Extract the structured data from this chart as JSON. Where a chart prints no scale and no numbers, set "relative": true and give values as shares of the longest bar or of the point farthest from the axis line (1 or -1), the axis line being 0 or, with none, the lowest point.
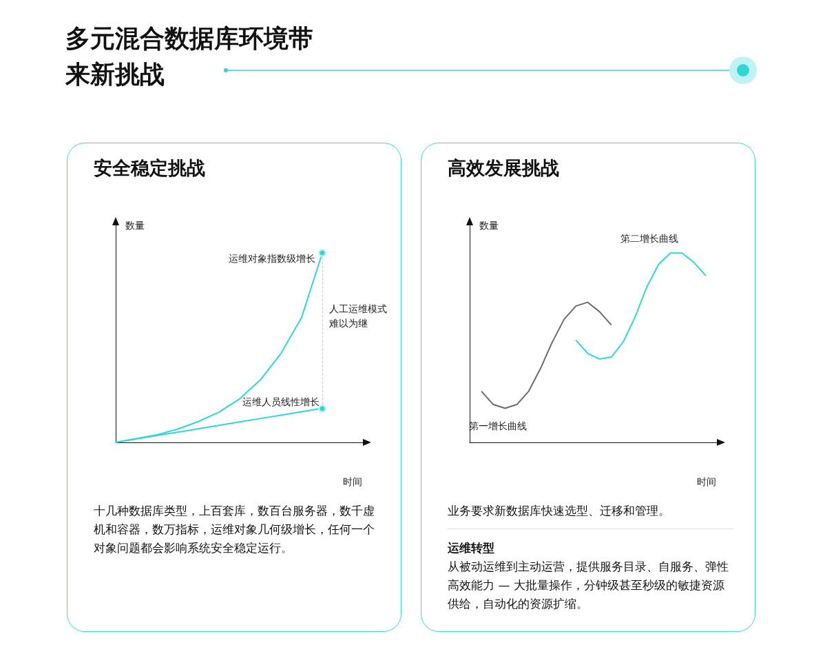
{
  "chart_data": [
    {
      "type": "other",
      "title": "多元混合数据库环境带来新挑战"
    },
    {
      "type": "line",
      "title": "安全稳定挑战",
      "xlabel": "时间",
      "ylabel": "数量",
      "relative": true,
      "grid": false,
      "categories": [
        null,
        null,
        null,
        null,
        null,
        null,
        null,
        null,
        null,
        null,
        null,
        null,
        null
      ],
      "series": [
        {
          "name": "运维对象指数级增长",
          "color": "#2ed6d6",
          "values": [
            0,
            0.02,
            0.04,
            0.07,
            0.11,
            0.16,
            0.23,
            0.33,
            0.47,
            0.66,
            1.0,
            null,
            null
          ]
        },
        {
          "name": "运维人员线性增长",
          "color": "#2ed6d6",
          "values": [
            0,
            0.018,
            0.036,
            0.054,
            0.072,
            0.09,
            0.108,
            0.126,
            0.144,
            0.162,
            0.18,
            null,
            null
          ]
        }
      ],
      "annotations": [
        "人工运维模式难以为继",
        "十几种数据库类型，上百套库，数百台服务器，数千虚机和容器，数万指标，运维对象几何级增长，任何一个对象问题都会影响系统安全稳定运行。"
      ]
    },
    {
      "type": "line",
      "title": "高效发展挑战",
      "xlabel": "时间",
      "ylabel": "数量",
      "relative": true,
      "grid": false,
      "categories": [
        null,
        null,
        null,
        null,
        null,
        null,
        null,
        null,
        null,
        null,
        null,
        null,
        null,
        null,
        null,
        null,
        null,
        null,
        null,
        null,
        null,
        null
      ],
      "series": [
        {
          "name": "第一增长曲线",
          "color": "#6b6b6b",
          "values": [
            null,
            0.27,
            0.2,
            0.18,
            0.2,
            0.27,
            0.39,
            0.53,
            0.65,
            0.72,
            0.74,
            0.69,
            0.62,
            null,
            null,
            null,
            null,
            null,
            null,
            null,
            null,
            null
          ]
        },
        {
          "name": "第二增长曲线",
          "color": "#2ed6d6",
          "values": [
            null,
            null,
            null,
            null,
            null,
            null,
            null,
            null,
            null,
            0.54,
            0.47,
            0.44,
            0.45,
            0.53,
            0.66,
            0.82,
            0.94,
            1.0,
            1.0,
            0.95,
            0.88,
            null
          ]
        }
      ],
      "annotations": [
        "业务要求新数据库快速选型、迁移和管理。",
        "运维转型",
        "从被动运维到主动运营，提供服务目录、自服务、弹性高效能力 — 大批量操作，分钟级甚至秒级的敏捷资源供给，自动化的资源扩缩。"
      ]
    }
  ]
}
